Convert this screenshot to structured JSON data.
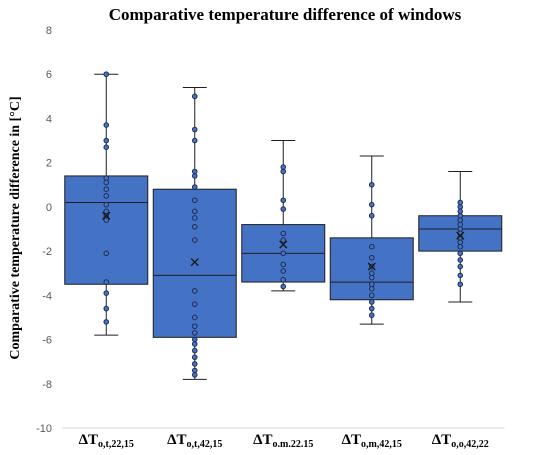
{
  "chart_data": {
    "type": "box",
    "title": "Comparative temperature difference of windows",
    "ylabel": "Comparative temperature difference in [°C]",
    "ylim": [
      -10,
      8
    ],
    "yticks": [
      -10,
      -8,
      -6,
      -4,
      -2,
      0,
      2,
      4,
      6,
      8
    ],
    "grid": false,
    "legend": "none",
    "colors": {
      "box_fill": "#4472C4",
      "box_edge": "#1F1F1F",
      "point_fill": "#4472C4",
      "point_edge": "#1F2D4F"
    },
    "categories": [
      {
        "prefix": "ΔT",
        "sub": "o,t,22,15"
      },
      {
        "prefix": "ΔT",
        "sub": "o,t,42,15"
      },
      {
        "prefix": "ΔT",
        "sub": "o.m.22.15"
      },
      {
        "prefix": "ΔT",
        "sub": "o,m,42,15"
      },
      {
        "prefix": "ΔT",
        "sub": "o,o,42,22"
      }
    ],
    "boxes": [
      {
        "min": -5.8,
        "q1": -3.5,
        "median": 0.2,
        "q3": 1.4,
        "max": 6.0,
        "mean": -0.4,
        "points": [
          6.0,
          3.7,
          3.0,
          2.7,
          1.3,
          1.1,
          0.8,
          0.5,
          0.1,
          -0.2,
          -0.4,
          -0.5,
          -0.6,
          -2.1,
          -3.4,
          -3.9,
          -4.6,
          -5.2
        ]
      },
      {
        "min": -7.8,
        "q1": -5.9,
        "median": -3.1,
        "q3": 0.8,
        "max": 5.4,
        "mean": -2.5,
        "points": [
          5.0,
          3.5,
          3.0,
          1.6,
          1.4,
          0.9,
          0.3,
          -0.2,
          -0.5,
          -0.9,
          -1.5,
          -3.8,
          -4.4,
          -5.0,
          -5.4,
          -5.7,
          -6.0,
          -6.2,
          -6.5,
          -6.8,
          -7.1,
          -7.4,
          -7.6
        ]
      },
      {
        "min": -3.8,
        "q1": -3.4,
        "median": -2.1,
        "q3": -0.8,
        "max": 3.0,
        "mean": -1.7,
        "points": [
          1.8,
          1.6,
          0.3,
          -0.1,
          -1.2,
          -1.5,
          -2.1,
          -2.6,
          -2.9,
          -3.3,
          -3.6
        ]
      },
      {
        "min": -5.3,
        "q1": -4.2,
        "median": -3.4,
        "q3": -1.4,
        "max": 2.3,
        "mean": -2.7,
        "points": [
          1.0,
          0.1,
          -0.4,
          -1.8,
          -2.3,
          -2.7,
          -3.0,
          -3.2,
          -3.5,
          -3.7,
          -4.0,
          -4.3,
          -4.6,
          -4.9
        ]
      },
      {
        "min": -4.3,
        "q1": -2.0,
        "median": -1.0,
        "q3": -0.4,
        "max": 1.6,
        "mean": -1.3,
        "points": [
          0.2,
          0.0,
          -0.2,
          -0.4,
          -0.6,
          -0.8,
          -1.0,
          -1.2,
          -1.4,
          -1.6,
          -1.8,
          -2.1,
          -2.4,
          -2.7,
          -3.1,
          -3.5
        ]
      }
    ]
  }
}
